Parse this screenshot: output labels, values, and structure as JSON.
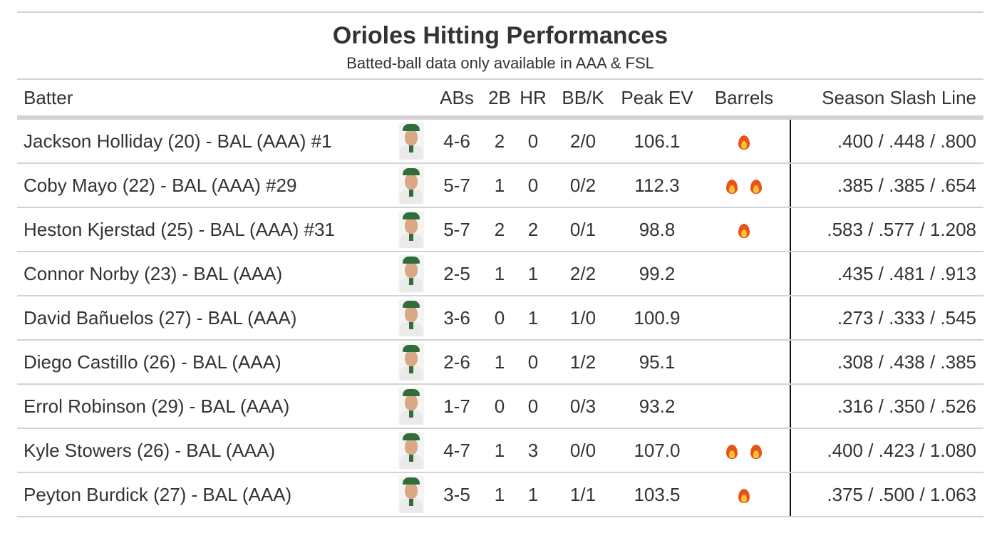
{
  "title": "Orioles Hitting Performances",
  "subtitle": "Batted-ball data only available in AAA & FSL",
  "columns": {
    "batter": "Batter",
    "abs": "ABs",
    "doubles": "2B",
    "hr": "HR",
    "bbk": "BB/K",
    "peak_ev": "Peak EV",
    "barrels": "Barrels",
    "slash": "Season Slash Line"
  },
  "rows": [
    {
      "name": "Jackson Holliday (20) - BAL (AAA) #1",
      "abs": "4-6",
      "doubles": "2",
      "hr": "0",
      "bbk": "2/0",
      "peak_ev": "106.1",
      "barrels": 1,
      "slash": ".400 / .448 / .800"
    },
    {
      "name": "Coby Mayo (22) - BAL (AAA) #29",
      "abs": "5-7",
      "doubles": "1",
      "hr": "0",
      "bbk": "0/2",
      "peak_ev": "112.3",
      "barrels": 2,
      "slash": ".385 / .385 / .654"
    },
    {
      "name": "Heston Kjerstad (25) - BAL (AAA) #31",
      "abs": "5-7",
      "doubles": "2",
      "hr": "2",
      "bbk": "0/1",
      "peak_ev": "98.8",
      "barrels": 1,
      "slash": ".583 / .577 / 1.208"
    },
    {
      "name": "Connor Norby (23) - BAL (AAA)",
      "abs": "2-5",
      "doubles": "1",
      "hr": "1",
      "bbk": "2/2",
      "peak_ev": "99.2",
      "barrels": 0,
      "slash": ".435 / .481 / .913"
    },
    {
      "name": "David Bañuelos (27) - BAL (AAA)",
      "abs": "3-6",
      "doubles": "0",
      "hr": "1",
      "bbk": "1/0",
      "peak_ev": "100.9",
      "barrels": 0,
      "slash": ".273 / .333 / .545"
    },
    {
      "name": "Diego Castillo (26) - BAL (AAA)",
      "abs": "2-6",
      "doubles": "1",
      "hr": "0",
      "bbk": "1/2",
      "peak_ev": "95.1",
      "barrels": 0,
      "slash": ".308 / .438 / .385"
    },
    {
      "name": "Errol Robinson (29) - BAL (AAA)",
      "abs": "1-7",
      "doubles": "0",
      "hr": "0",
      "bbk": "0/3",
      "peak_ev": "93.2",
      "barrels": 0,
      "slash": ".316 / .350 / .526"
    },
    {
      "name": "Kyle Stowers (26) - BAL (AAA)",
      "abs": "4-7",
      "doubles": "1",
      "hr": "3",
      "bbk": "0/0",
      "peak_ev": "107.0",
      "barrels": 2,
      "slash": ".400 / .423 / 1.080"
    },
    {
      "name": "Peyton Burdick (27) - BAL (AAA)",
      "abs": "3-5",
      "doubles": "1",
      "hr": "1",
      "bbk": "1/1",
      "peak_ev": "103.5",
      "barrels": 1,
      "slash": ".375 / .500 / 1.063"
    }
  ],
  "icons": {
    "barrel": "fire-icon",
    "headshot": "player-headshot"
  }
}
